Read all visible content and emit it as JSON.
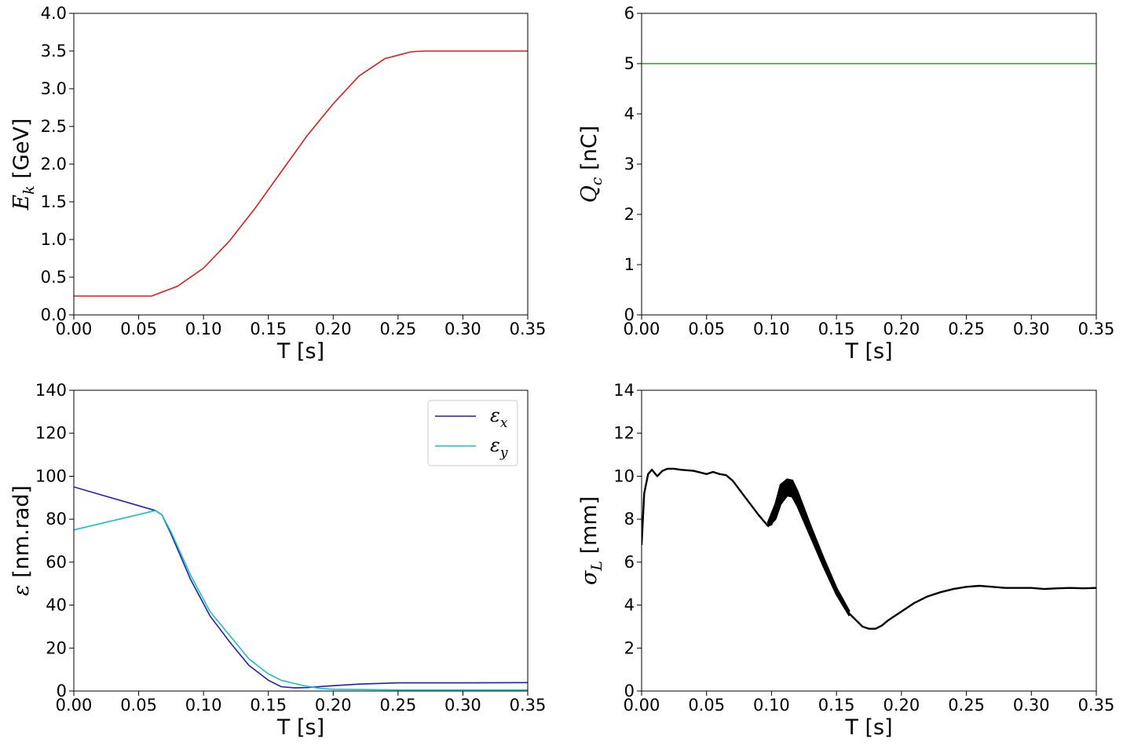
{
  "chart_data": [
    {
      "type": "line",
      "xlabel": "T [s]",
      "ylabel": "E_k [GeV]",
      "ylabel_main": "E",
      "ylabel_sub": "k",
      "ylabel_unit": " [GeV]",
      "xlim": [
        0,
        0.35
      ],
      "ylim": [
        0,
        4.0
      ],
      "xticks": [
        "0.00",
        "0.05",
        "0.10",
        "0.15",
        "0.20",
        "0.25",
        "0.30",
        "0.35"
      ],
      "yticks": [
        "0.0",
        "0.5",
        "1.0",
        "1.5",
        "2.0",
        "2.5",
        "3.0",
        "3.5",
        "4.0"
      ],
      "series": [
        {
          "name": "E_k",
          "color": "#e41a1c",
          "x": [
            0,
            0.06,
            0.08,
            0.1,
            0.12,
            0.14,
            0.16,
            0.18,
            0.2,
            0.22,
            0.24,
            0.26,
            0.27,
            0.35
          ],
          "y": [
            0.25,
            0.25,
            0.38,
            0.62,
            0.98,
            1.42,
            1.9,
            2.38,
            2.8,
            3.17,
            3.4,
            3.49,
            3.5,
            3.5
          ]
        }
      ]
    },
    {
      "type": "line",
      "xlabel": "T [s]",
      "ylabel": "Q_c [nC]",
      "ylabel_main": "Q",
      "ylabel_sub": "c",
      "ylabel_unit": " [nC]",
      "xlim": [
        0,
        0.35
      ],
      "ylim": [
        0,
        6
      ],
      "xticks": [
        "0.00",
        "0.05",
        "0.10",
        "0.15",
        "0.20",
        "0.25",
        "0.30",
        "0.35"
      ],
      "yticks": [
        "0",
        "1",
        "2",
        "3",
        "4",
        "5",
        "6"
      ],
      "series": [
        {
          "name": "Q_c",
          "color": "#2ca02c",
          "x": [
            0,
            0.35
          ],
          "y": [
            5,
            5
          ]
        }
      ]
    },
    {
      "type": "line",
      "xlabel": "T [s]",
      "ylabel": "ε [nm.rad]",
      "ylabel_main": "ε",
      "ylabel_sub": "",
      "ylabel_unit": " [nm.rad]",
      "xlim": [
        0,
        0.35
      ],
      "ylim": [
        0,
        140
      ],
      "xticks": [
        "0.00",
        "0.05",
        "0.10",
        "0.15",
        "0.20",
        "0.25",
        "0.30",
        "0.35"
      ],
      "yticks": [
        "0",
        "20",
        "40",
        "60",
        "80",
        "100",
        "120",
        "140"
      ],
      "legend": "top-right",
      "series": [
        {
          "name": "ε_x",
          "legend_main": "ε",
          "legend_sub": "x",
          "color": "#1f1fbf",
          "x": [
            0,
            0.063,
            0.068,
            0.075,
            0.09,
            0.105,
            0.12,
            0.135,
            0.15,
            0.16,
            0.17,
            0.18,
            0.2,
            0.22,
            0.25,
            0.3,
            0.35
          ],
          "y": [
            95,
            84,
            82,
            73,
            52,
            35,
            23,
            12,
            5,
            2,
            1.5,
            1.6,
            2.5,
            3.2,
            3.8,
            3.8,
            3.9
          ]
        },
        {
          "name": "ε_y",
          "legend_main": "ε",
          "legend_sub": "y",
          "color": "#17c3c8",
          "x": [
            0,
            0.063,
            0.068,
            0.075,
            0.09,
            0.105,
            0.12,
            0.135,
            0.15,
            0.16,
            0.17,
            0.18,
            0.19,
            0.2,
            0.25,
            0.35
          ],
          "y": [
            75,
            84,
            82,
            74,
            54,
            37,
            26,
            15,
            8,
            5,
            3.5,
            2.2,
            1.2,
            0.8,
            0.5,
            0.5
          ]
        }
      ]
    },
    {
      "type": "line",
      "xlabel": "T [s]",
      "ylabel": "σ_L [mm]",
      "ylabel_main": "σ",
      "ylabel_sub": "L",
      "ylabel_unit": " [mm]",
      "xlim": [
        0,
        0.35
      ],
      "ylim": [
        0,
        14
      ],
      "xticks": [
        "0.00",
        "0.05",
        "0.10",
        "0.15",
        "0.20",
        "0.25",
        "0.30",
        "0.35"
      ],
      "yticks": [
        "0",
        "2",
        "4",
        "6",
        "8",
        "10",
        "12",
        "14"
      ],
      "series": [
        {
          "name": "σ_L",
          "color": "#000000",
          "x": [
            0,
            0.002,
            0.005,
            0.008,
            0.012,
            0.016,
            0.02,
            0.025,
            0.03,
            0.04,
            0.05,
            0.055,
            0.06,
            0.065,
            0.07,
            0.08,
            0.09,
            0.097,
            0.1,
            0.103,
            0.107,
            0.112,
            0.116,
            0.12,
            0.13,
            0.14,
            0.15,
            0.16,
            0.17,
            0.175,
            0.18,
            0.185,
            0.19,
            0.2,
            0.21,
            0.22,
            0.23,
            0.24,
            0.25,
            0.26,
            0.27,
            0.28,
            0.29,
            0.3,
            0.31,
            0.32,
            0.33,
            0.34,
            0.35
          ],
          "y": [
            6.8,
            9.2,
            10.1,
            10.3,
            10.0,
            10.25,
            10.35,
            10.35,
            10.3,
            10.25,
            10.1,
            10.2,
            10.1,
            10.05,
            9.8,
            9.0,
            8.2,
            7.7,
            7.75,
            8.3,
            9.2,
            9.5,
            9.4,
            8.8,
            7.4,
            6.0,
            4.6,
            3.6,
            3.0,
            2.9,
            2.9,
            3.05,
            3.3,
            3.7,
            4.1,
            4.4,
            4.6,
            4.75,
            4.85,
            4.9,
            4.85,
            4.8,
            4.8,
            4.8,
            4.75,
            4.78,
            4.8,
            4.78,
            4.8
          ]
        },
        {
          "name": "σ_L_band_upper",
          "color": "#000000",
          "x": [
            0.097,
            0.103,
            0.107,
            0.112,
            0.116,
            0.12,
            0.13,
            0.14,
            0.15,
            0.16
          ],
          "y": [
            7.8,
            8.7,
            9.6,
            9.85,
            9.8,
            9.3,
            7.7,
            6.2,
            4.8,
            3.7
          ]
        },
        {
          "name": "σ_L_band_lower",
          "color": "#000000",
          "x": [
            0.097,
            0.103,
            0.107,
            0.112,
            0.116,
            0.12,
            0.13,
            0.14,
            0.15,
            0.16
          ],
          "y": [
            7.65,
            8.0,
            8.7,
            9.1,
            9.05,
            8.6,
            7.2,
            5.8,
            4.5,
            3.5
          ]
        }
      ]
    }
  ]
}
